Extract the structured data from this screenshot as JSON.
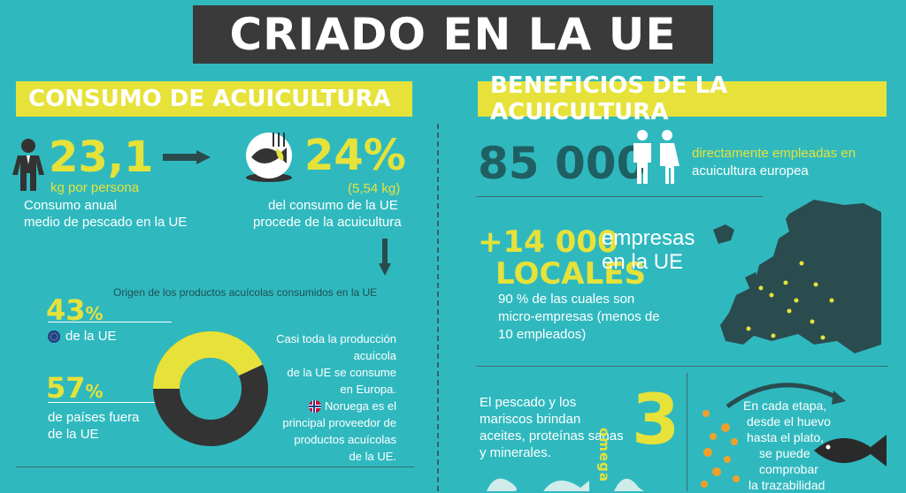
{
  "title": "CRIADO EN LA UE",
  "left": {
    "header": "CONSUMO DE ACUICULTURA",
    "consumption_value": "23,1",
    "consumption_unit": "kg por persona",
    "consumption_desc_1": "Consumo anual",
    "consumption_desc_2": "medio de pescado en la UE",
    "share_value": "24%",
    "share_sub": "(5,54 kg)",
    "share_desc_1": "del consumo de la UE",
    "share_desc_2": "procede de la acuicultura",
    "origin_title": "Origen de los productos acuícolas consumidos en la UE",
    "eu_pct": "43",
    "eu_pct_sign": "%",
    "eu_label": "de la UE",
    "non_eu_pct": "57",
    "non_eu_pct_sign": "%",
    "non_eu_label_1": "de países fuera",
    "non_eu_label_2": "de la UE",
    "note_1": "Casi toda la producción acuícola",
    "note_2": "de la UE se consume",
    "note_3": "en Europa.",
    "note_4": "Noruega es el",
    "note_5": "principal proveedor de",
    "note_6": "productos acuícolas",
    "note_7": "de la UE.",
    "donut": {
      "eu_fraction": 0.43
    }
  },
  "right": {
    "header": "BENEFICIOS DE LA ACUICULTURA",
    "employed_value": "85 000",
    "employed_desc_1": "directamente empleadas en",
    "employed_desc_2": "acuicultura europea",
    "companies_value": "+14 000",
    "companies_label": "LOCALES",
    "companies_desc_1": "empresas",
    "companies_desc_2": "en la UE",
    "micro_1": "90 % de las cuales son",
    "micro_2": "micro-empresas (menos de",
    "micro_3": "10 empleados)",
    "omega_word": "omega",
    "omega_num": "3",
    "health_1": "El pescado y los",
    "health_2": "mariscos brindan",
    "health_3": "aceites, proteínas sanas",
    "health_4": "y minerales.",
    "trace_1": "En cada etapa,",
    "trace_2": "desde el huevo",
    "trace_3": "hasta el plato,",
    "trace_4": "se puede",
    "trace_5": "comprobar",
    "trace_6": "la trazabilidad"
  },
  "colors": {
    "background": "#2fb9bf",
    "accent": "#e6e23a",
    "dark": "#3a3a3a",
    "eu_flag": "#1f3f8f"
  }
}
